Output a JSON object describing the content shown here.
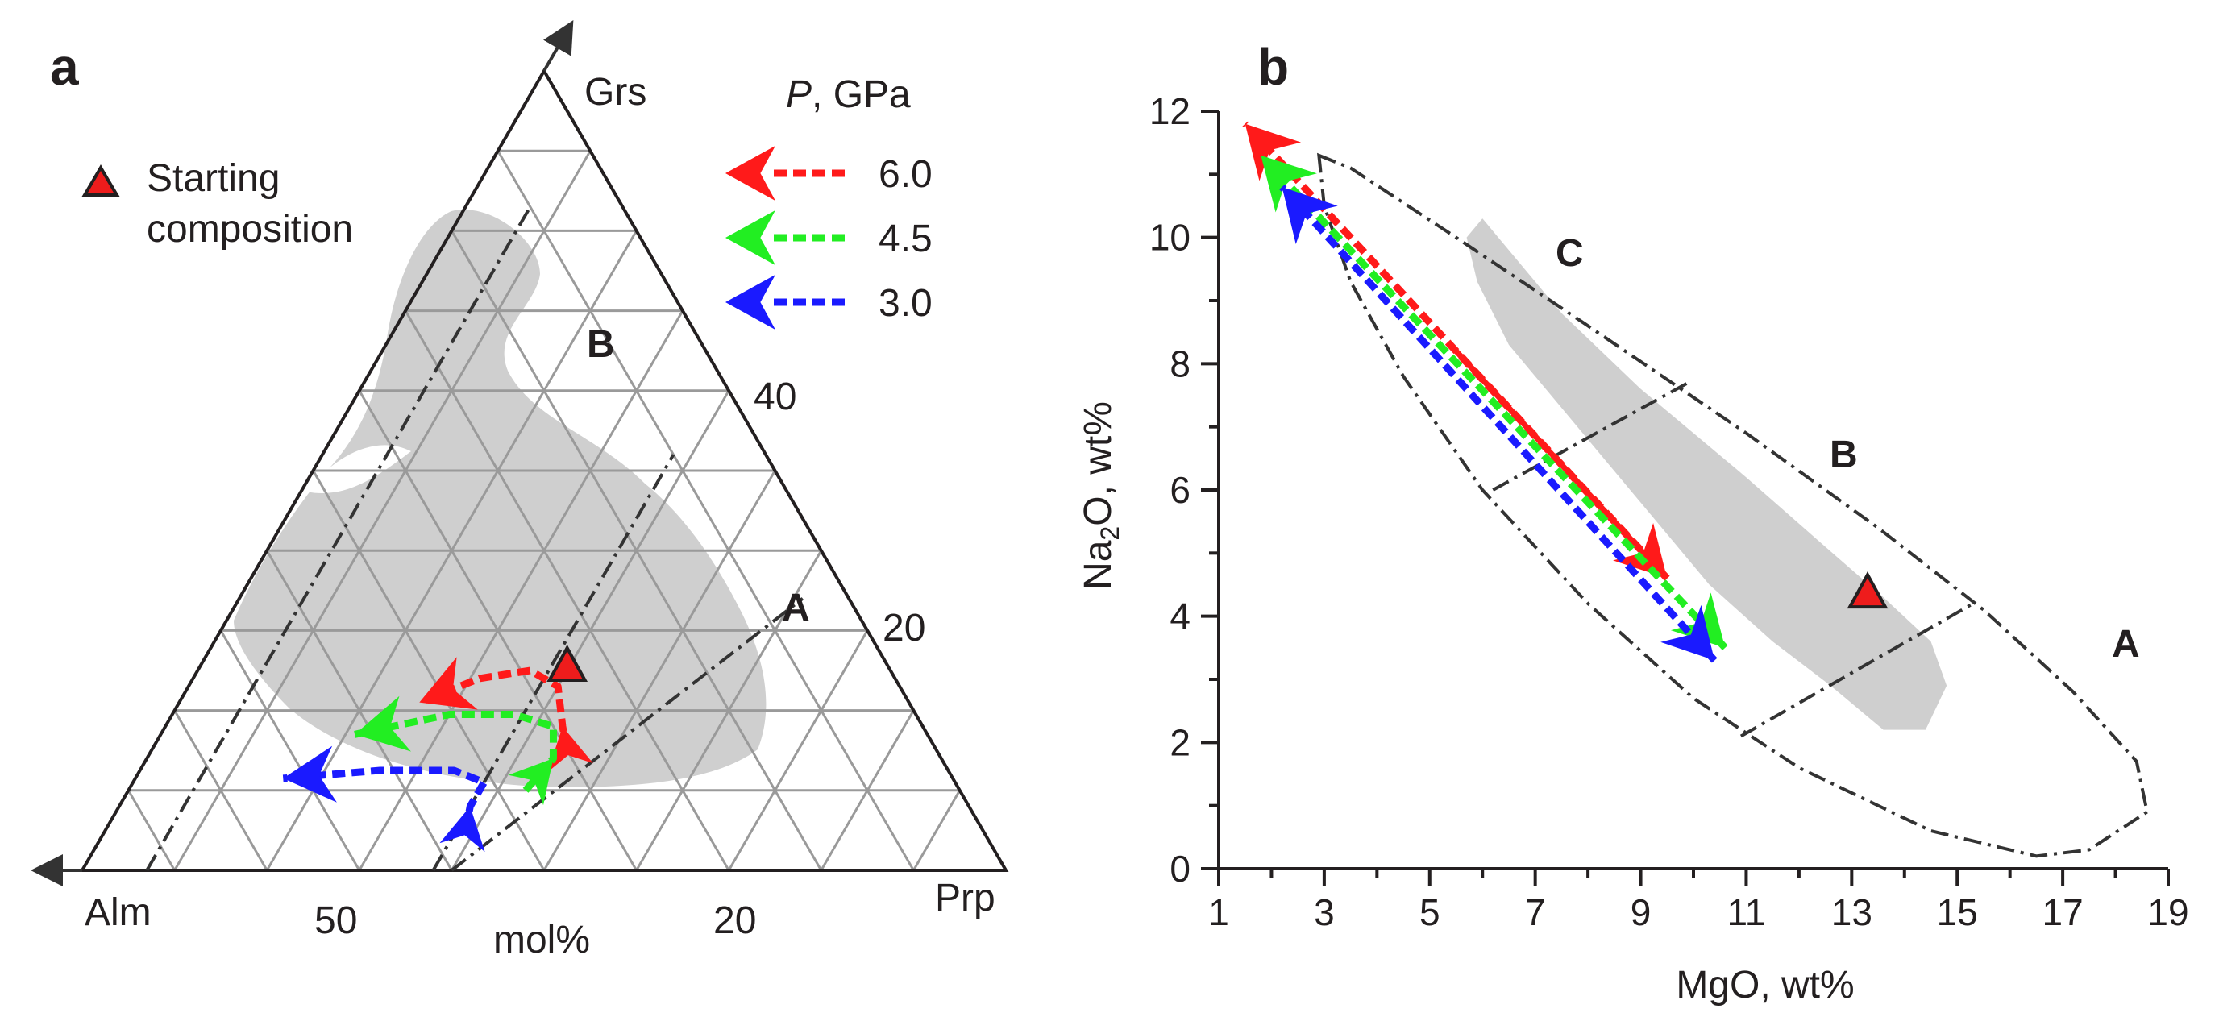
{
  "chart_data": [
    {
      "type": "ternary",
      "panel": "a",
      "corners": {
        "top": "Grs",
        "left": "Alm",
        "right": "Prp"
      },
      "unit": "mol%",
      "tick_labels": {
        "bottom": [
          "50",
          "20"
        ],
        "right": [
          "40",
          "20"
        ]
      },
      "field_labels": [
        "A",
        "B"
      ],
      "legend": {
        "marker_label_line1": "Starting",
        "marker_label_line2": "composition",
        "pressure_title_italic": "P",
        "pressure_title_rest": ", GPa",
        "pressures": [
          {
            "label": "6.0",
            "color": "#ff1a1a"
          },
          {
            "label": "4.5",
            "color": "#22ee22"
          },
          {
            "label": "3.0",
            "color": "#1a1aff"
          }
        ]
      },
      "starting_composition": {
        "Prp": 40,
        "Grs": 25
      },
      "paths": [
        {
          "pressure": "6.0",
          "color": "#ff1a1a",
          "points": [
            [
              45,
              15
            ],
            [
              43,
              18
            ],
            [
              40,
              23
            ],
            [
              36,
              25
            ],
            [
              31,
              24
            ],
            [
              26,
              21
            ]
          ]
        },
        {
          "pressure": "4.5",
          "color": "#22ee22",
          "points": [
            [
              43,
              10
            ],
            [
              44,
              14
            ],
            [
              42,
              18
            ],
            [
              37,
              19.5
            ],
            [
              30,
              19.5
            ],
            [
              21,
              17
            ]
          ]
        },
        {
          "pressure": "3.0",
          "color": "#1a1aff",
          "points": [
            [
              39,
              5
            ],
            [
              38,
              8
            ],
            [
              38,
              11
            ],
            [
              34,
              12.5
            ],
            [
              26,
              12.5
            ],
            [
              16,
              11.5
            ]
          ]
        }
      ],
      "grid_step": 10
    },
    {
      "type": "scatter",
      "panel": "b",
      "xlabel": "MgO, wt%",
      "ylabel_main": "Na",
      "ylabel_sub": "2",
      "ylabel_rest": "O, wt%",
      "xlim": [
        1,
        19
      ],
      "ylim": [
        0,
        12
      ],
      "xticks": [
        "1",
        "3",
        "5",
        "7",
        "9",
        "11",
        "13",
        "15",
        "17",
        "19"
      ],
      "yticks": [
        "0",
        "2",
        "4",
        "6",
        "8",
        "10",
        "12"
      ],
      "field_labels": [
        "A",
        "B",
        "C"
      ],
      "starting_composition": [
        13.3,
        4.3
      ],
      "paths": [
        {
          "pressure": "6.0",
          "color": "#ff1a1a",
          "start": [
            1.5,
            11.8
          ],
          "end": [
            9.5,
            4.6
          ]
        },
        {
          "pressure": "4.5",
          "color": "#22ee22",
          "start": [
            1.8,
            11.3
          ],
          "end": [
            10.6,
            3.5
          ]
        },
        {
          "pressure": "3.0",
          "color": "#1a1aff",
          "start": [
            2.2,
            10.8
          ],
          "end": [
            10.4,
            3.3
          ]
        }
      ]
    }
  ]
}
